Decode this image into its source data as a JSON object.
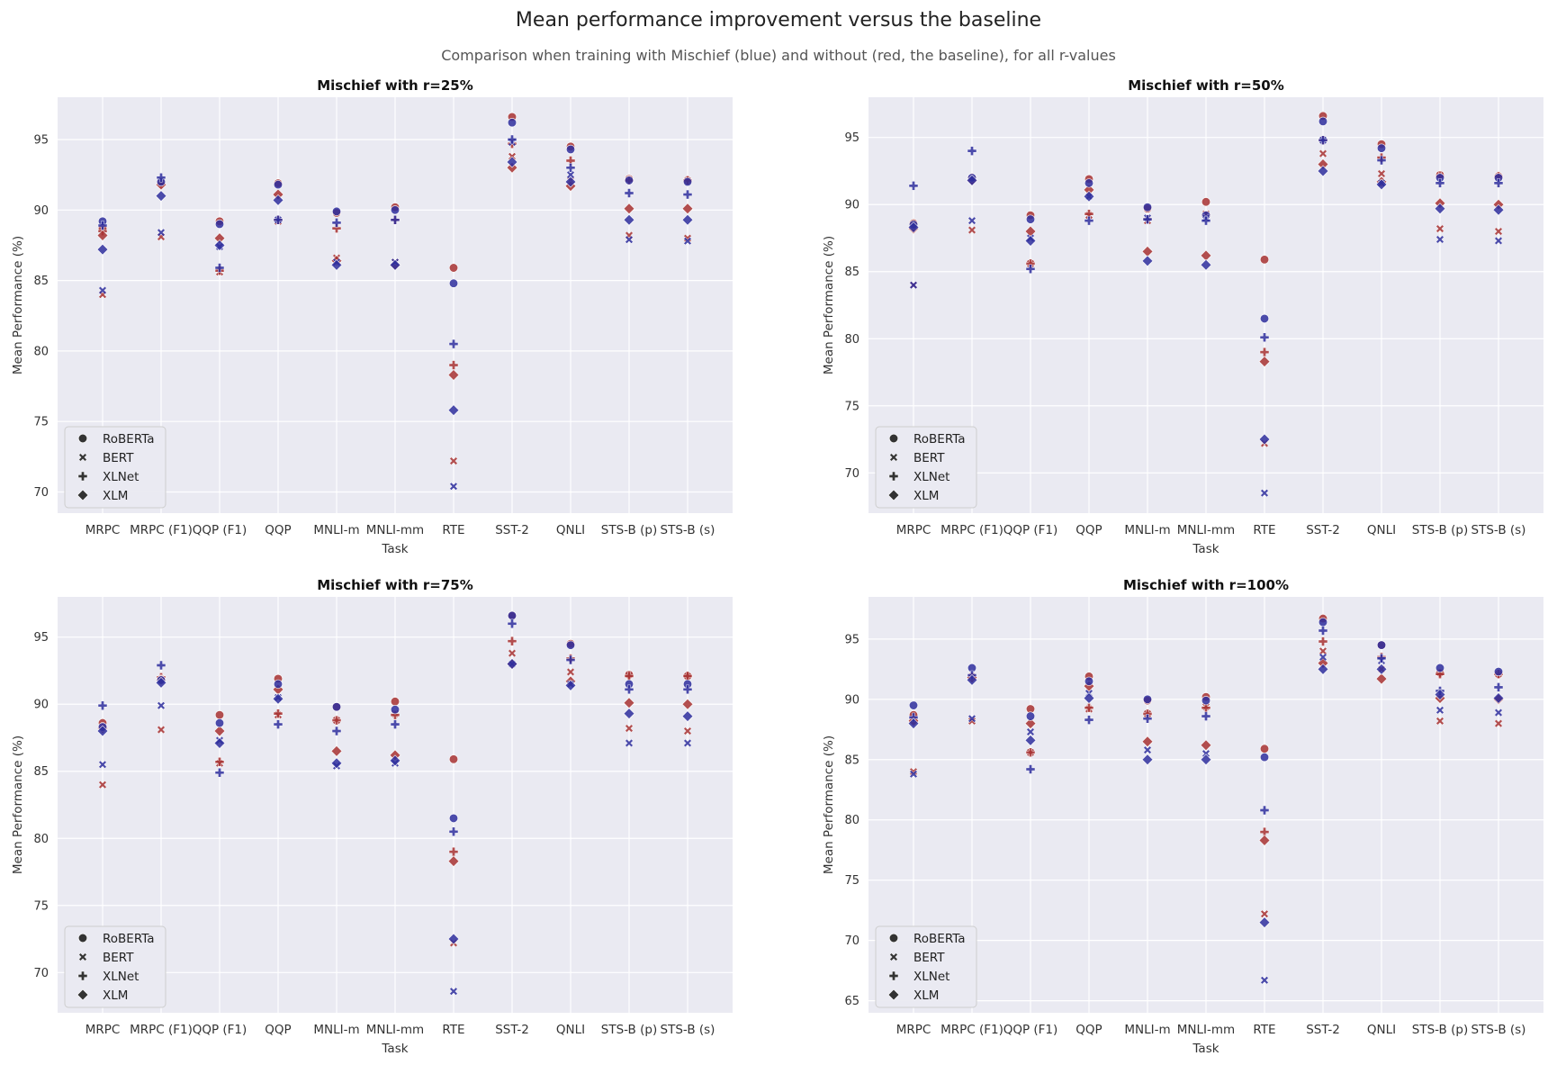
{
  "title": "Mean performance improvement versus the baseline",
  "subtitle": "Comparison when training with Mischief (blue) and without (red, the baseline), for all r-values",
  "colors": {
    "mischief": "#2f2f9e",
    "baseline": "#a83232",
    "panel_bg": "#eaeaf2",
    "grid": "#ffffff"
  },
  "chart_data": [
    {
      "type": "scatter",
      "title": "Mischief with r=25%",
      "xlabel": "Task",
      "ylabel": "Mean Performance (%)",
      "categories": [
        "MRPC",
        "MRPC (F1)",
        "QQP (F1)",
        "QQP",
        "MNLI-m",
        "MNLI-mm",
        "RTE",
        "SST-2",
        "QNLI",
        "STS-B (p)",
        "STS-B (s)"
      ],
      "ylim": [
        68.5,
        98
      ],
      "yticks": [
        70,
        75,
        80,
        85,
        90,
        95
      ],
      "grid": true,
      "legend": {
        "placement": "lower-left",
        "entries": [
          "RoBERTa",
          "BERT",
          "XLNet",
          "XLM"
        ]
      },
      "series": [
        {
          "model": "RoBERTa",
          "condition": "mischief",
          "values": [
            89.2,
            92.0,
            89.0,
            91.8,
            89.9,
            90.0,
            84.8,
            96.2,
            94.3,
            92.1,
            92.0
          ]
        },
        {
          "model": "RoBERTa",
          "condition": "baseline",
          "values": [
            88.7,
            91.9,
            89.2,
            91.9,
            89.8,
            90.2,
            85.9,
            96.6,
            94.5,
            92.2,
            92.1
          ]
        },
        {
          "model": "BERT",
          "condition": "mischief",
          "values": [
            84.3,
            88.4,
            87.4,
            89.3,
            86.3,
            86.3,
            70.4,
            94.8,
            92.5,
            87.9,
            87.8
          ]
        },
        {
          "model": "BERT",
          "condition": "baseline",
          "values": [
            84.0,
            88.1,
            85.6,
            89.2,
            86.6,
            86.3,
            72.2,
            93.8,
            92.1,
            88.2,
            88.0
          ]
        },
        {
          "model": "XLNet",
          "condition": "mischief",
          "values": [
            88.9,
            92.3,
            85.9,
            89.3,
            89.1,
            89.3,
            80.5,
            95.0,
            93.0,
            91.2,
            91.1
          ]
        },
        {
          "model": "XLNet",
          "condition": "baseline",
          "values": [
            88.5,
            91.9,
            85.7,
            89.3,
            88.7,
            89.3,
            79.0,
            94.7,
            93.5,
            92.1,
            92.1
          ]
        },
        {
          "model": "XLM",
          "condition": "mischief",
          "values": [
            87.2,
            91.0,
            87.5,
            90.7,
            86.1,
            86.1,
            75.8,
            93.4,
            92.0,
            89.3,
            89.3
          ]
        },
        {
          "model": "XLM",
          "condition": "baseline",
          "values": [
            88.2,
            91.8,
            88.0,
            91.1,
            86.4,
            86.1,
            78.3,
            93.0,
            91.7,
            90.1,
            90.1
          ]
        }
      ]
    },
    {
      "type": "scatter",
      "title": "Mischief with r=50%",
      "xlabel": "Task",
      "ylabel": "Mean Performance (%)",
      "categories": [
        "MRPC",
        "MRPC (F1)",
        "QQP (F1)",
        "QQP",
        "MNLI-m",
        "MNLI-mm",
        "RTE",
        "SST-2",
        "QNLI",
        "STS-B (p)",
        "STS-B (s)"
      ],
      "ylim": [
        67,
        98
      ],
      "yticks": [
        70,
        75,
        80,
        85,
        90,
        95
      ],
      "grid": true,
      "legend": {
        "placement": "lower-left",
        "entries": [
          "RoBERTa",
          "BERT",
          "XLNet",
          "XLM"
        ]
      },
      "series": [
        {
          "model": "RoBERTa",
          "condition": "mischief",
          "values": [
            88.5,
            92.0,
            88.9,
            91.6,
            89.8,
            89.2,
            81.5,
            96.2,
            94.2,
            92.0,
            92.0
          ]
        },
        {
          "model": "RoBERTa",
          "condition": "baseline",
          "values": [
            88.6,
            91.9,
            89.2,
            91.9,
            89.7,
            90.2,
            85.9,
            96.6,
            94.5,
            92.2,
            92.1
          ]
        },
        {
          "model": "BERT",
          "condition": "mischief",
          "values": [
            84.0,
            88.8,
            87.5,
            90.6,
            89.0,
            89.0,
            68.5,
            94.8,
            91.6,
            87.4,
            87.3
          ]
        },
        {
          "model": "BERT",
          "condition": "baseline",
          "values": [
            84.0,
            88.1,
            85.6,
            89.2,
            88.8,
            89.3,
            72.2,
            93.8,
            92.3,
            88.2,
            88.0
          ]
        },
        {
          "model": "XLNet",
          "condition": "mischief",
          "values": [
            91.4,
            94.0,
            85.2,
            88.8,
            88.9,
            88.8,
            80.1,
            94.8,
            93.3,
            91.6,
            91.6
          ]
        },
        {
          "model": "XLNet",
          "condition": "baseline",
          "values": [
            88.3,
            92.0,
            85.6,
            89.3,
            88.9,
            89.2,
            79.0,
            94.8,
            93.5,
            92.1,
            92.1
          ]
        },
        {
          "model": "XLM",
          "condition": "mischief",
          "values": [
            88.3,
            91.8,
            87.3,
            90.6,
            85.8,
            85.5,
            72.5,
            92.5,
            91.5,
            89.7,
            89.6
          ]
        },
        {
          "model": "XLM",
          "condition": "baseline",
          "values": [
            88.2,
            91.8,
            88.0,
            91.1,
            86.5,
            86.2,
            78.3,
            93.0,
            91.7,
            90.1,
            90.0
          ]
        }
      ]
    },
    {
      "type": "scatter",
      "title": "Mischief with r=75%",
      "xlabel": "Task",
      "ylabel": "Mean Performance (%)",
      "categories": [
        "MRPC",
        "MRPC (F1)",
        "QQP (F1)",
        "QQP",
        "MNLI-m",
        "MNLI-mm",
        "RTE",
        "SST-2",
        "QNLI",
        "STS-B (p)",
        "STS-B (s)"
      ],
      "ylim": [
        67,
        98
      ],
      "yticks": [
        70,
        75,
        80,
        85,
        90,
        95
      ],
      "grid": true,
      "legend": {
        "placement": "lower-left",
        "entries": [
          "RoBERTa",
          "BERT",
          "XLNet",
          "XLM"
        ]
      },
      "series": [
        {
          "model": "RoBERTa",
          "condition": "mischief",
          "values": [
            88.3,
            91.8,
            88.6,
            91.5,
            89.8,
            89.6,
            81.5,
            96.6,
            94.4,
            91.5,
            91.5
          ]
        },
        {
          "model": "RoBERTa",
          "condition": "baseline",
          "values": [
            88.6,
            91.9,
            89.2,
            91.9,
            89.8,
            90.2,
            85.9,
            96.6,
            94.5,
            92.2,
            92.1
          ]
        },
        {
          "model": "BERT",
          "condition": "mischief",
          "values": [
            85.5,
            89.9,
            87.3,
            90.5,
            85.4,
            85.6,
            68.6,
            93.0,
            91.5,
            87.1,
            87.1
          ]
        },
        {
          "model": "BERT",
          "condition": "baseline",
          "values": [
            84.0,
            88.1,
            85.6,
            89.2,
            88.8,
            89.3,
            72.2,
            93.8,
            92.4,
            88.2,
            88.0
          ]
        },
        {
          "model": "XLNet",
          "condition": "mischief",
          "values": [
            89.9,
            92.9,
            84.9,
            88.5,
            88.0,
            88.5,
            80.5,
            96.0,
            93.3,
            91.1,
            91.1
          ]
        },
        {
          "model": "XLNet",
          "condition": "baseline",
          "values": [
            88.3,
            92.0,
            85.7,
            89.3,
            88.8,
            89.2,
            79.0,
            94.7,
            93.4,
            92.1,
            92.1
          ]
        },
        {
          "model": "XLM",
          "condition": "mischief",
          "values": [
            88.0,
            91.6,
            87.1,
            90.4,
            85.6,
            85.8,
            72.5,
            93.0,
            91.4,
            89.3,
            89.1
          ]
        },
        {
          "model": "XLM",
          "condition": "baseline",
          "values": [
            88.2,
            91.8,
            88.0,
            91.1,
            86.5,
            86.2,
            78.3,
            93.0,
            91.7,
            90.1,
            90.0
          ]
        }
      ]
    },
    {
      "type": "scatter",
      "title": "Mischief with r=100%",
      "xlabel": "Task",
      "ylabel": "Mean Performance (%)",
      "categories": [
        "MRPC",
        "MRPC (F1)",
        "QQP (F1)",
        "QQP",
        "MNLI-m",
        "MNLI-mm",
        "RTE",
        "SST-2",
        "QNLI",
        "STS-B (p)",
        "STS-B (s)"
      ],
      "ylim": [
        64,
        98.5
      ],
      "yticks": [
        65,
        70,
        75,
        80,
        85,
        90,
        95
      ],
      "grid": true,
      "legend": {
        "placement": "lower-left",
        "entries": [
          "RoBERTa",
          "BERT",
          "XLNet",
          "XLM"
        ]
      },
      "series": [
        {
          "model": "RoBERTa",
          "condition": "mischief",
          "values": [
            89.5,
            92.6,
            88.6,
            91.5,
            90.0,
            89.9,
            85.2,
            96.4,
            94.5,
            92.6,
            92.3
          ]
        },
        {
          "model": "RoBERTa",
          "condition": "baseline",
          "values": [
            88.7,
            91.9,
            89.2,
            91.9,
            89.9,
            90.2,
            85.9,
            96.7,
            94.5,
            92.2,
            92.1
          ]
        },
        {
          "model": "BERT",
          "condition": "mischief",
          "values": [
            83.8,
            88.4,
            87.3,
            90.5,
            85.8,
            85.5,
            66.7,
            93.5,
            93.2,
            89.1,
            88.9
          ]
        },
        {
          "model": "BERT",
          "condition": "baseline",
          "values": [
            84.0,
            88.2,
            85.6,
            89.2,
            88.8,
            89.4,
            72.2,
            94.0,
            92.5,
            88.2,
            88.0
          ]
        },
        {
          "model": "XLNet",
          "condition": "mischief",
          "values": [
            88.5,
            92.0,
            84.2,
            88.3,
            88.4,
            88.6,
            80.8,
            95.7,
            93.4,
            90.7,
            91.0
          ]
        },
        {
          "model": "XLNet",
          "condition": "baseline",
          "values": [
            88.3,
            91.8,
            85.6,
            89.3,
            88.8,
            89.3,
            79.0,
            94.8,
            93.5,
            92.1,
            92.1
          ]
        },
        {
          "model": "XLM",
          "condition": "mischief",
          "values": [
            88.0,
            91.6,
            86.6,
            90.1,
            85.0,
            85.0,
            71.5,
            92.5,
            92.5,
            90.4,
            90.1
          ]
        },
        {
          "model": "XLM",
          "condition": "baseline",
          "values": [
            88.2,
            91.8,
            88.0,
            91.1,
            86.5,
            86.2,
            78.3,
            93.0,
            91.7,
            90.1,
            90.0
          ]
        }
      ]
    }
  ]
}
